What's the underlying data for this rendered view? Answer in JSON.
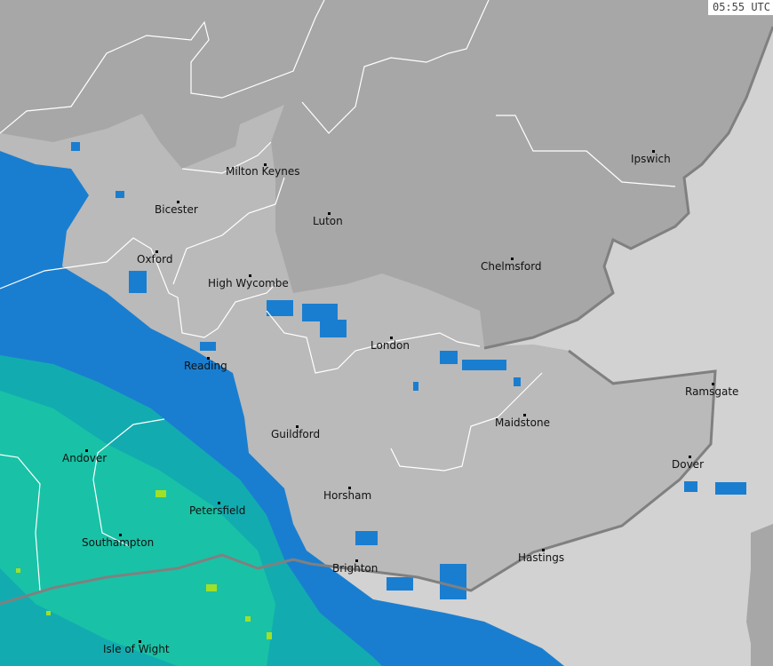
{
  "timestamp": "05:55 UTC",
  "colors": {
    "outer_land": "#a7a7a7",
    "region_land": "#bababa",
    "sea": "#d2d2d2",
    "rain_light": "#1a7ed0",
    "rain_moderate": "#12acb0",
    "rain_heavier": "#1cc8a4",
    "rain_heavy": "#a0e028",
    "boundary": "#ffffff",
    "coast": "#808080"
  },
  "cities": [
    {
      "name": "Milton Keynes"
    },
    {
      "name": "Ipswich"
    },
    {
      "name": "Bicester"
    },
    {
      "name": "Luton"
    },
    {
      "name": "Oxford"
    },
    {
      "name": "Chelmsford"
    },
    {
      "name": "High Wycombe"
    },
    {
      "name": "London"
    },
    {
      "name": "Reading"
    },
    {
      "name": "Ramsgate"
    },
    {
      "name": "Maidstone"
    },
    {
      "name": "Guildford"
    },
    {
      "name": "Andover"
    },
    {
      "name": "Dover"
    },
    {
      "name": "Horsham"
    },
    {
      "name": "Petersfield"
    },
    {
      "name": "Southampton"
    },
    {
      "name": "Hastings"
    },
    {
      "name": "Brighton"
    },
    {
      "name": "Isle of Wight"
    }
  ]
}
